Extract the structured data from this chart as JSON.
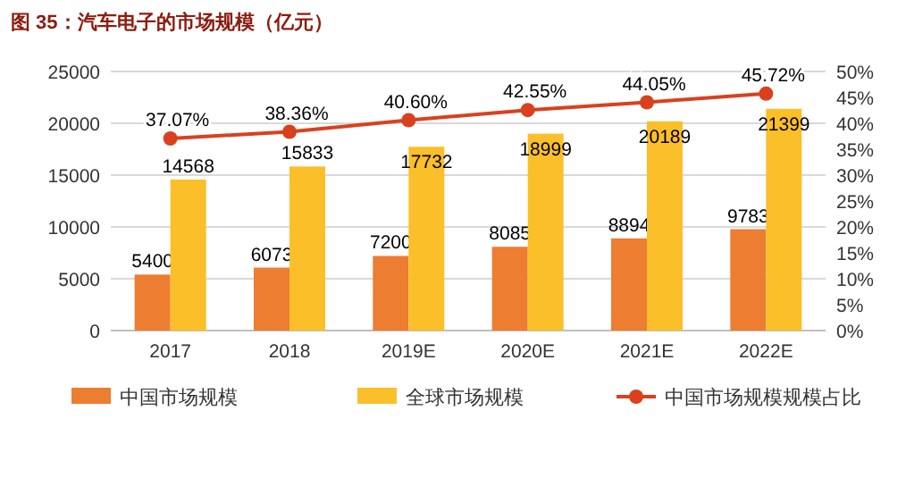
{
  "chart_data": {
    "type": "bar",
    "title": "图 35：汽车电子的市场规模（亿元）",
    "categories": [
      "2017",
      "2018",
      "2019E",
      "2020E",
      "2021E",
      "2022E"
    ],
    "series": [
      {
        "name": "中国市场规模",
        "type": "bar",
        "color": "#ed7d31",
        "values": [
          5400,
          6073,
          7200,
          8085,
          8894,
          9783
        ],
        "value_labels": [
          "5400",
          "6073",
          "7200",
          "8085",
          "8894",
          "9783"
        ]
      },
      {
        "name": "全球市场规模",
        "type": "bar",
        "color": "#fbbf2a",
        "values": [
          14568,
          15833,
          17732,
          18999,
          20189,
          21399
        ],
        "value_labels": [
          "14568",
          "15833",
          "17732",
          "18999",
          "20189",
          "21399"
        ]
      },
      {
        "name": "中国市场规模规模占比",
        "type": "line",
        "axis": "y2",
        "color": "#d9411e",
        "marker": "circle",
        "values": [
          37.07,
          38.36,
          40.6,
          42.55,
          44.05,
          45.72
        ],
        "value_labels": [
          "37.07%",
          "38.36%",
          "40.60%",
          "42.55%",
          "44.05%",
          "45.72%"
        ]
      }
    ],
    "ylim": [
      0,
      25000
    ],
    "yticks": [
      0,
      5000,
      10000,
      15000,
      20000,
      25000
    ],
    "y2lim": [
      0,
      50
    ],
    "y2ticks": [
      {
        "value": 0,
        "label": "0%"
      },
      {
        "value": 5,
        "label": "5%"
      },
      {
        "value": 10,
        "label": "10%"
      },
      {
        "value": 15,
        "label": "15%"
      },
      {
        "value": 20,
        "label": "20%"
      },
      {
        "value": 25,
        "label": "25%"
      },
      {
        "value": 30,
        "label": "30%"
      },
      {
        "value": 35,
        "label": "35%"
      },
      {
        "value": 40,
        "label": "40%"
      },
      {
        "value": 45,
        "label": "45%"
      },
      {
        "value": 50,
        "label": "50%"
      }
    ],
    "grid": "y",
    "legend": "bottom"
  }
}
